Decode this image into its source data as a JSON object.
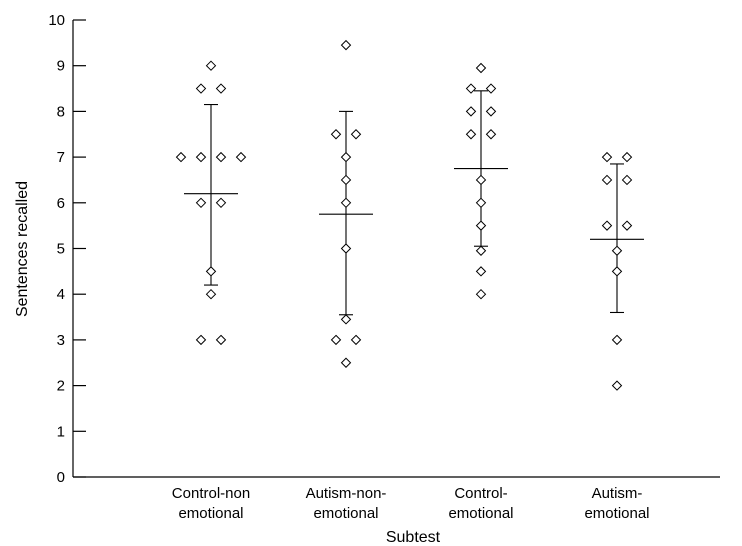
{
  "chart_data": {
    "type": "scatter",
    "xlabel": "Subtest",
    "ylabel": "Sentences recalled",
    "ylim": [
      0,
      10
    ],
    "yticks": [
      0,
      1,
      2,
      3,
      4,
      5,
      6,
      7,
      8,
      9,
      10
    ],
    "grid": false,
    "categories": [
      {
        "line1": "Control-non",
        "line2": "emotional"
      },
      {
        "line1": "Autism-non-",
        "line2": "emotional"
      },
      {
        "line1": "Control-",
        "line2": "emotional"
      },
      {
        "line1": "Autism-",
        "line2": "emotional"
      }
    ],
    "groups": [
      {
        "mean": 6.2,
        "sd_low": 4.2,
        "sd_high": 8.15,
        "points": [
          {
            "y": 9.0,
            "offset": 0
          },
          {
            "y": 8.5,
            "offset": -0.5
          },
          {
            "y": 8.5,
            "offset": 0.5
          },
          {
            "y": 7.0,
            "offset": -1.5
          },
          {
            "y": 7.0,
            "offset": -0.5
          },
          {
            "y": 7.0,
            "offset": 0.5
          },
          {
            "y": 7.0,
            "offset": 1.5
          },
          {
            "y": 6.0,
            "offset": -0.5
          },
          {
            "y": 6.0,
            "offset": 0.5
          },
          {
            "y": 4.5,
            "offset": 0
          },
          {
            "y": 4.0,
            "offset": 0
          },
          {
            "y": 3.0,
            "offset": -0.5
          },
          {
            "y": 3.0,
            "offset": 0.5
          }
        ]
      },
      {
        "mean": 5.75,
        "sd_low": 3.55,
        "sd_high": 8.0,
        "points": [
          {
            "y": 9.45,
            "offset": 0
          },
          {
            "y": 7.5,
            "offset": -0.5
          },
          {
            "y": 7.5,
            "offset": 0.5
          },
          {
            "y": 7.0,
            "offset": 0
          },
          {
            "y": 6.5,
            "offset": 0
          },
          {
            "y": 6.0,
            "offset": 0
          },
          {
            "y": 5.0,
            "offset": 0
          },
          {
            "y": 3.45,
            "offset": 0
          },
          {
            "y": 3.0,
            "offset": -0.5
          },
          {
            "y": 3.0,
            "offset": 0.5
          },
          {
            "y": 2.5,
            "offset": 0
          }
        ]
      },
      {
        "mean": 6.75,
        "sd_low": 5.05,
        "sd_high": 8.45,
        "points": [
          {
            "y": 8.95,
            "offset": 0
          },
          {
            "y": 8.5,
            "offset": -0.5
          },
          {
            "y": 8.5,
            "offset": 0.5
          },
          {
            "y": 8.0,
            "offset": -0.5
          },
          {
            "y": 8.0,
            "offset": 0.5
          },
          {
            "y": 7.5,
            "offset": -0.5
          },
          {
            "y": 7.5,
            "offset": 0.5
          },
          {
            "y": 6.5,
            "offset": 0
          },
          {
            "y": 6.0,
            "offset": 0
          },
          {
            "y": 5.5,
            "offset": 0
          },
          {
            "y": 4.95,
            "offset": 0
          },
          {
            "y": 4.5,
            "offset": 0
          },
          {
            "y": 4.0,
            "offset": 0
          }
        ]
      },
      {
        "mean": 5.2,
        "sd_low": 3.6,
        "sd_high": 6.85,
        "points": [
          {
            "y": 7.0,
            "offset": -0.5
          },
          {
            "y": 7.0,
            "offset": 0.5
          },
          {
            "y": 6.5,
            "offset": -0.5
          },
          {
            "y": 6.5,
            "offset": 0.5
          },
          {
            "y": 5.5,
            "offset": -0.5
          },
          {
            "y": 5.5,
            "offset": 0.5
          },
          {
            "y": 4.95,
            "offset": 0
          },
          {
            "y": 4.5,
            "offset": 0
          },
          {
            "y": 3.0,
            "offset": 0
          },
          {
            "y": 2.0,
            "offset": 0
          }
        ]
      }
    ]
  }
}
